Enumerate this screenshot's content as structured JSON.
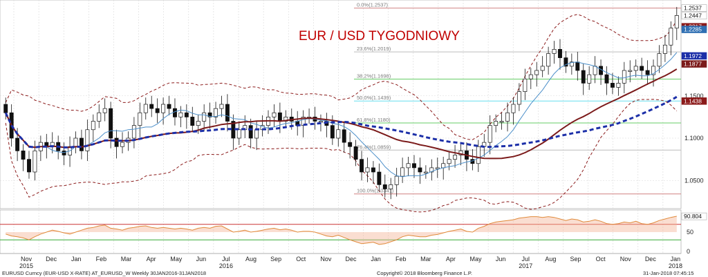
{
  "colors": {
    "bull": "#ffffff",
    "bear": "#111111",
    "sma_blue_thin": "#4a8ec9",
    "ma_red": "#7b1a1a",
    "ma_blue_dashed": "#1c2fa8",
    "bollinger": "#8b1a1a",
    "fib_red": "#d08080",
    "fib_green": "#66cc66",
    "fib_cyan": "#66ddee",
    "rsi_line": "#e08a3a",
    "rsi_fill": "#f5b69a",
    "tag_grey_bg": "#7d8ba0"
  },
  "chart_data": {
    "type": "candlestick",
    "title": "EUR / USD TYGODNIOWY",
    "ylim": [
      1.02,
      1.26
    ],
    "y_ticks": [
      1.05,
      1.1,
      1.15
    ],
    "y_tick_labels": [
      "1.0500",
      "1.1000",
      "1.1500"
    ],
    "x_labels": [
      {
        "label": "Nov",
        "year": "2015"
      },
      {
        "label": "Dec"
      },
      {
        "label": "Jan"
      },
      {
        "label": "Feb"
      },
      {
        "label": "Mar"
      },
      {
        "label": "Apr"
      },
      {
        "label": "May"
      },
      {
        "label": "Jun"
      },
      {
        "label": "Jul",
        "year": "2016"
      },
      {
        "label": "Aug"
      },
      {
        "label": "Sep"
      },
      {
        "label": "Oct"
      },
      {
        "label": "Nov"
      },
      {
        "label": "Dec"
      },
      {
        "label": "Jan"
      },
      {
        "label": "Feb"
      },
      {
        "label": "Mar"
      },
      {
        "label": "Apr"
      },
      {
        "label": "May"
      },
      {
        "label": "Jun"
      },
      {
        "label": "Jul",
        "year": "2017"
      },
      {
        "label": "Aug"
      },
      {
        "label": "Sep"
      },
      {
        "label": "Oct"
      },
      {
        "label": "Nov"
      },
      {
        "label": "Dec"
      },
      {
        "label": "Jan",
        "year": "2018"
      }
    ],
    "year_labels": [
      "2015",
      "2016",
      "2017",
      "2018"
    ],
    "price_closes": [
      1.13,
      1.1,
      1.085,
      1.075,
      1.06,
      1.085,
      1.095,
      1.09,
      1.095,
      1.085,
      1.08,
      1.09,
      1.1,
      1.085,
      1.11,
      1.12,
      1.13,
      1.135,
      1.1,
      1.09,
      1.095,
      1.1,
      1.115,
      1.13,
      1.14,
      1.135,
      1.13,
      1.14,
      1.135,
      1.125,
      1.13,
      1.125,
      1.115,
      1.12,
      1.13,
      1.125,
      1.135,
      1.14,
      1.12,
      1.1,
      1.11,
      1.115,
      1.1,
      1.11,
      1.115,
      1.125,
      1.13,
      1.12,
      1.125,
      1.12,
      1.115,
      1.125,
      1.125,
      1.12,
      1.12,
      1.115,
      1.1,
      1.11,
      1.095,
      1.09,
      1.075,
      1.06,
      1.065,
      1.06,
      1.045,
      1.04,
      1.045,
      1.055,
      1.065,
      1.07,
      1.065,
      1.06,
      1.06,
      1.065,
      1.065,
      1.07,
      1.075,
      1.08,
      1.085,
      1.075,
      1.07,
      1.09,
      1.095,
      1.115,
      1.12,
      1.12,
      1.13,
      1.14,
      1.155,
      1.17,
      1.175,
      1.18,
      1.185,
      1.2,
      1.205,
      1.195,
      1.185,
      1.19,
      1.18,
      1.165,
      1.175,
      1.185,
      1.175,
      1.165,
      1.16,
      1.165,
      1.18,
      1.18,
      1.185,
      1.18,
      1.175,
      1.185,
      1.2,
      1.21,
      1.23,
      1.245
    ],
    "price_labels": {
      "high": "1.2537",
      "last": "1.2447",
      "upper_band": "1.2317",
      "sma_thin": "1.2285",
      "ma_red": "1.1972",
      "sma_blue": "1.1877",
      "lower_band": "1.1438"
    },
    "fib_levels": [
      {
        "label": "0.0%(1.2537)",
        "value": 1.2537,
        "color": "#d08080"
      },
      {
        "label": "23.6%(1.2019)",
        "value": 1.2019,
        "color": "#bbbbbb"
      },
      {
        "label": "38.2%(1.1698)",
        "value": 1.1698,
        "color": "#66cc66"
      },
      {
        "label": "50.0%(1.1439)",
        "value": 1.1439,
        "color": "#66ddee"
      },
      {
        "label": "61.8%(1.1180)",
        "value": 1.118,
        "color": "#66cc66"
      },
      {
        "label": "76.4%(1.0859)",
        "value": 1.0859,
        "color": "#bbbbbb"
      },
      {
        "label": "100.0%(1.0341)",
        "value": 1.0341,
        "color": "#d08080"
      }
    ],
    "rsi": {
      "ylim": [
        0,
        100
      ],
      "y_ticks": [
        0,
        50
      ],
      "last_value_label": "90.804",
      "overbought": 70,
      "oversold": 30,
      "values": [
        45,
        40,
        38,
        35,
        30,
        38,
        45,
        50,
        55,
        52,
        48,
        45,
        50,
        55,
        60,
        62,
        66,
        68,
        60,
        58,
        55,
        60,
        62,
        65,
        66,
        62,
        60,
        62,
        60,
        58,
        60,
        58,
        55,
        60,
        62,
        60,
        65,
        66,
        58,
        50,
        52,
        55,
        50,
        52,
        55,
        58,
        60,
        56,
        58,
        55,
        50,
        52,
        52,
        50,
        45,
        40,
        38,
        42,
        36,
        30,
        25,
        20,
        22,
        24,
        18,
        20,
        25,
        30,
        38,
        42,
        40,
        38,
        38,
        42,
        44,
        48,
        52,
        55,
        58,
        52,
        50,
        60,
        65,
        72,
        76,
        78,
        80,
        82,
        86,
        88,
        90,
        90,
        88,
        90,
        88,
        84,
        80,
        84,
        82,
        76,
        78,
        82,
        78,
        72,
        70,
        72,
        76,
        74,
        78,
        72,
        70,
        74,
        80,
        84,
        88,
        91
      ]
    },
    "footer": {
      "left": "EURUSD Curncy (EUR-USD X-RATE) AT_EURUSD_W  Weekly 30JAN2016-31JAN2018",
      "center": "Copyright© 2018 Bloomberg Finance L.P.",
      "right": "31-Jan-2018 07:45:15"
    }
  }
}
